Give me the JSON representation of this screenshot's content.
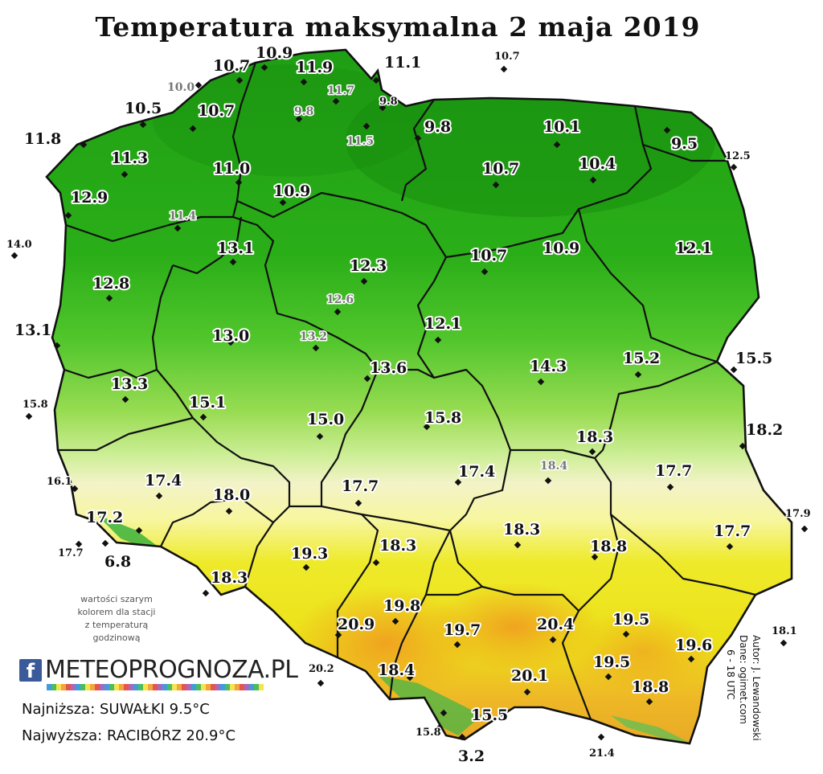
{
  "title": "Temperatura maksymalna 2 maja 2019",
  "note_lines": [
    "wartości szarym",
    "kolorem dla stacji",
    "z temperaturą",
    "godzinową"
  ],
  "logo": {
    "icon": "f",
    "text": "METEOPROGNOZA.PL"
  },
  "stats": {
    "min": "Najniższa: SUWAŁKI 9.5°C",
    "max": "Najwyższa: RACIBÓRZ 20.9°C"
  },
  "credits": {
    "author": "Autor: J. Lewandowski",
    "source": "Dane: ogimet.com",
    "hours": "6 - 18 UTC"
  },
  "colors": {
    "dark_green": "#1e9e14",
    "green": "#3cbf22",
    "light_green": "#8fd94a",
    "pale": "#f3f3c8",
    "yellow": "#ece81a",
    "orange": "#f0b020",
    "border": "#111111",
    "grey_label": "#777777"
  },
  "labels": [
    {
      "v": "10.9",
      "s": "big"
    },
    {
      "v": "10.7",
      "s": "big"
    },
    {
      "v": "11.9",
      "s": "big"
    },
    {
      "v": "11.1",
      "s": "big"
    },
    {
      "v": "10.7",
      "s": "small"
    },
    {
      "v": "10.0",
      "s": "grey"
    },
    {
      "v": "11.7",
      "s": "grey"
    },
    {
      "v": "9.8",
      "s": "small"
    },
    {
      "v": "10.5",
      "s": "big"
    },
    {
      "v": "10.7",
      "s": "big"
    },
    {
      "v": "9.8",
      "s": "grey"
    },
    {
      "v": "11.8",
      "s": "big"
    },
    {
      "v": "9.8",
      "s": "big"
    },
    {
      "v": "10.1",
      "s": "big"
    },
    {
      "v": "9.5",
      "s": "big"
    },
    {
      "v": "11.5",
      "s": "grey"
    },
    {
      "v": "11.3",
      "s": "big"
    },
    {
      "v": "11.0",
      "s": "big"
    },
    {
      "v": "10.7",
      "s": "big"
    },
    {
      "v": "10.4",
      "s": "big"
    },
    {
      "v": "12.5",
      "s": "small"
    },
    {
      "v": "12.9",
      "s": "big"
    },
    {
      "v": "10.9",
      "s": "big"
    },
    {
      "v": "11.4",
      "s": "grey"
    },
    {
      "v": "14.0",
      "s": "small"
    },
    {
      "v": "13.1",
      "s": "big"
    },
    {
      "v": "12.3",
      "s": "big"
    },
    {
      "v": "10.7",
      "s": "big"
    },
    {
      "v": "10.9",
      "s": "big"
    },
    {
      "v": "12.1",
      "s": "big"
    },
    {
      "v": "12.8",
      "s": "big"
    },
    {
      "v": "12.6",
      "s": "grey"
    },
    {
      "v": "13.1",
      "s": "big"
    },
    {
      "v": "13.0",
      "s": "big"
    },
    {
      "v": "13.2",
      "s": "grey"
    },
    {
      "v": "12.1",
      "s": "big"
    },
    {
      "v": "13.6",
      "s": "big"
    },
    {
      "v": "14.3",
      "s": "big"
    },
    {
      "v": "15.2",
      "s": "big"
    },
    {
      "v": "15.5",
      "s": "big"
    },
    {
      "v": "13.3",
      "s": "big"
    },
    {
      "v": "15.8",
      "s": "small"
    },
    {
      "v": "15.1",
      "s": "big"
    },
    {
      "v": "15.0",
      "s": "big"
    },
    {
      "v": "15.8",
      "s": "big"
    },
    {
      "v": "18.3",
      "s": "big"
    },
    {
      "v": "18.2",
      "s": "big"
    },
    {
      "v": "16.1",
      "s": "small"
    },
    {
      "v": "17.4",
      "s": "big"
    },
    {
      "v": "18.0",
      "s": "big"
    },
    {
      "v": "17.7",
      "s": "big"
    },
    {
      "v": "17.4",
      "s": "big"
    },
    {
      "v": "18.4",
      "s": "grey"
    },
    {
      "v": "17.7",
      "s": "big"
    },
    {
      "v": "17.2",
      "s": "big"
    },
    {
      "v": "17.9",
      "s": "small"
    },
    {
      "v": "17.7",
      "s": "big"
    },
    {
      "v": "17.7",
      "s": "small"
    },
    {
      "v": "6.8",
      "s": "big"
    },
    {
      "v": "19.3",
      "s": "big"
    },
    {
      "v": "18.3",
      "s": "big"
    },
    {
      "v": "18.3",
      "s": "big"
    },
    {
      "v": "18.8",
      "s": "big"
    },
    {
      "v": "18.3",
      "s": "big"
    },
    {
      "v": "19.8",
      "s": "big"
    },
    {
      "v": "20.9",
      "s": "big"
    },
    {
      "v": "19.7",
      "s": "big"
    },
    {
      "v": "20.4",
      "s": "big"
    },
    {
      "v": "19.5",
      "s": "big"
    },
    {
      "v": "18.1",
      "s": "small"
    },
    {
      "v": "19.6",
      "s": "big"
    },
    {
      "v": "20.2",
      "s": "small"
    },
    {
      "v": "18.4",
      "s": "big"
    },
    {
      "v": "20.1",
      "s": "big"
    },
    {
      "v": "19.5",
      "s": "big"
    },
    {
      "v": "18.8",
      "s": "big"
    },
    {
      "v": "15.5",
      "s": "big"
    },
    {
      "v": "15.8",
      "s": "small"
    },
    {
      "v": "3.2",
      "s": "big"
    },
    {
      "v": "21.4",
      "s": "small"
    }
  ]
}
